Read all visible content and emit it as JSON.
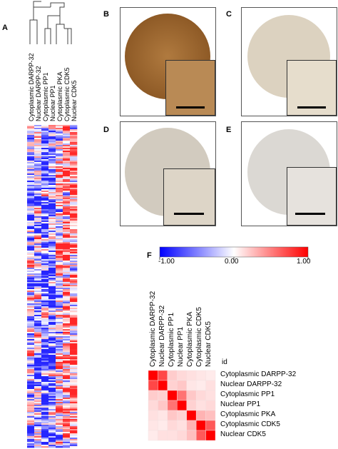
{
  "panels": {
    "a": "A",
    "b": "B",
    "c": "C",
    "d": "D",
    "e": "E",
    "f": "F"
  },
  "heatmap_a": {
    "columns": [
      "Cytoplasmic DARPP-32",
      "Nuclear DARPP-32",
      "Cytoplasmic PP1",
      "Nuclear PP1",
      "Cytoplasmic PKA",
      "Cytoplasmic CDK5",
      "Nuclear CDK5"
    ]
  },
  "colorbar": {
    "min_label": "-1.00",
    "mid_label": "0.00",
    "max_label": "1.00",
    "colors": [
      "#0000ff",
      "#ffffff",
      "#ff0000"
    ]
  },
  "tma_images": [
    {
      "panel": "B",
      "stain": "strong",
      "color": "#a8733a"
    },
    {
      "panel": "C",
      "stain": "weak",
      "color": "#d9cdb5"
    },
    {
      "panel": "D",
      "stain": "weak",
      "color": "#cfc8bb"
    },
    {
      "panel": "E",
      "stain": "very weak",
      "color": "#d7d4d0"
    }
  ],
  "chart_data": {
    "type": "heatmap",
    "title": "",
    "id_label": "id",
    "rows": [
      "Cytoplasmic DARPP-32",
      "Nuclear DARPP-32",
      "Cytoplasmic PP1",
      "Nuclear PP1",
      "Cytoplasmic PKA",
      "Cytoplasmic CDK5",
      "Nuclear CDK5"
    ],
    "columns": [
      "Cytoplasmic DARPP-32",
      "Nuclear DARPP-32",
      "Cytoplasmic PP1",
      "Nuclear PP1",
      "Cytoplasmic PKA",
      "Cytoplasmic CDK5",
      "Nuclear CDK5"
    ],
    "values": [
      [
        1.0,
        0.72,
        0.2,
        0.15,
        0.12,
        0.1,
        0.08
      ],
      [
        0.72,
        1.0,
        0.18,
        0.22,
        0.1,
        0.08,
        0.12
      ],
      [
        0.2,
        0.18,
        1.0,
        0.55,
        0.22,
        0.15,
        0.12
      ],
      [
        0.15,
        0.22,
        0.55,
        1.0,
        0.18,
        0.12,
        0.15
      ],
      [
        0.12,
        0.1,
        0.22,
        0.18,
        1.0,
        0.3,
        0.25
      ],
      [
        0.1,
        0.08,
        0.15,
        0.12,
        0.3,
        1.0,
        0.65
      ],
      [
        0.08,
        0.12,
        0.12,
        0.15,
        0.25,
        0.65,
        1.0
      ]
    ],
    "color_range": [
      -1.0,
      1.0
    ]
  }
}
